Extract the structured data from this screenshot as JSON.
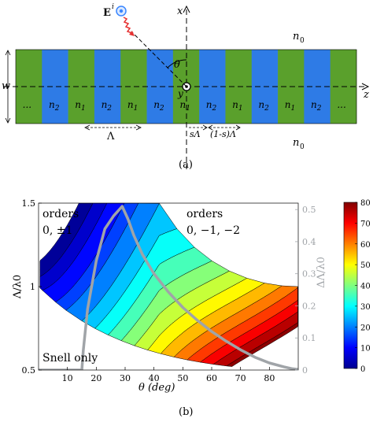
{
  "figure_a": {
    "label": "(a)",
    "axis_x_label": "x",
    "axis_z_label": "z",
    "axis_y_label": "y",
    "width_label": "w",
    "theta_label": "θ",
    "field_label": "E",
    "field_superscript": "i",
    "medium_top": "n",
    "medium_top_sub": "0",
    "medium_bottom": "n",
    "medium_bottom_sub": "0",
    "ellipsis": "...",
    "period_label": "Λ",
    "fill_label": "sΛ",
    "fill_label_2": "(1-s)Λ",
    "colors": {
      "green": "#5aa02c",
      "blue": "#2e7be6",
      "arrow": "#e63232",
      "source": "#3a86ff"
    },
    "stripes": [
      {
        "material": "green",
        "text": "..."
      },
      {
        "material": "blue",
        "text": "n2"
      },
      {
        "material": "green",
        "text": "n1"
      },
      {
        "material": "blue",
        "text": "n2"
      },
      {
        "material": "green",
        "text": "n1"
      },
      {
        "material": "blue",
        "text": "n2"
      },
      {
        "material": "green",
        "text": "n1"
      },
      {
        "material": "blue",
        "text": "n2"
      },
      {
        "material": "green",
        "text": "n1"
      },
      {
        "material": "blue",
        "text": "n2"
      },
      {
        "material": "green",
        "text": "n1"
      },
      {
        "material": "blue",
        "text": "n2"
      },
      {
        "material": "green",
        "text": "..."
      }
    ]
  },
  "figure_b": {
    "label": "(b)",
    "chart_data": {
      "type": "heatmap",
      "xlabel": "θ (deg)",
      "ylabel": "Λ/λ0",
      "y2label": "ΔΛ/λ0",
      "xlim": [
        0,
        90
      ],
      "ylim": [
        0.5,
        1.5
      ],
      "y2lim": [
        0,
        0.52
      ],
      "colorbar_lim": [
        0,
        80
      ],
      "x_ticks": [
        10,
        20,
        30,
        40,
        50,
        60,
        70,
        80
      ],
      "y_ticks": [
        0.5,
        1,
        1.5
      ],
      "y2_ticks": [
        0,
        0.1,
        0.2,
        0.3,
        0.4,
        0.5
      ],
      "colorbar_ticks": [
        0,
        10,
        20,
        30,
        40,
        50,
        60,
        70,
        80
      ],
      "region_labels": [
        {
          "line1": "orders",
          "line2": "0, ±1"
        },
        {
          "line1": "orders",
          "line2": "0, −1, −2"
        },
        {
          "line1": "Snell only",
          "line2": ""
        }
      ],
      "gray_curve": {
        "color": "#a0a4a8",
        "x": [
          0,
          15,
          15.5,
          17,
          20,
          23,
          26,
          29,
          31,
          33,
          36,
          40,
          45,
          50,
          55,
          60,
          65,
          70,
          75,
          80,
          85,
          88,
          90
        ],
        "y2": [
          0.0,
          0.0,
          0.06,
          0.19,
          0.34,
          0.44,
          0.48,
          0.51,
          0.47,
          0.42,
          0.36,
          0.3,
          0.243,
          0.195,
          0.155,
          0.12,
          0.09,
          0.063,
          0.04,
          0.022,
          0.01,
          0.004,
          0.002
        ]
      },
      "contour_levels": [
        0,
        4,
        8,
        13,
        17,
        23,
        28,
        33,
        38,
        43,
        48,
        53,
        58,
        63,
        68,
        73,
        78,
        80
      ]
    }
  }
}
